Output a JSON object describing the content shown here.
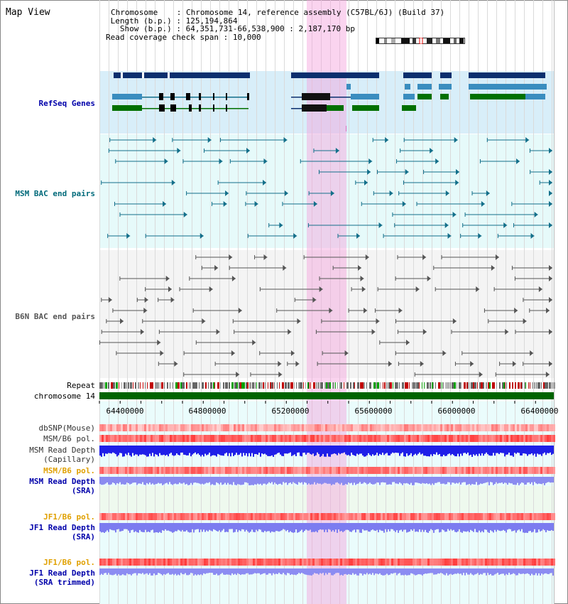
{
  "title": "Map View",
  "info": {
    "chromosome_label": "Chromosome",
    "chromosome_value": "Chromosome 14, reference assembly (C57BL/6J) (Build 37)",
    "length_label": "Length (b.p.)",
    "length_value": "125,194,864",
    "show_label": "Show (b.p.)",
    "show_value": "64,351,731-66,538,900 : 2,187,170 bp",
    "coverage_label": "Read coverage check span",
    "coverage_value": "10,000"
  },
  "tracks": {
    "refseq": "RefSeq Genes",
    "msm_bac": "MSM BAC end pairs",
    "b6n_bac": "B6N BAC end pairs",
    "repeat": "Repeat",
    "chromosome": "chromosome 14",
    "dbsnp": "dbSNP(Mouse)",
    "msm_b6_pol_1": "MSM/B6 pol.",
    "msm_read_depth_cap_1": "MSM Read Depth",
    "msm_read_depth_cap_2": "(Capillary)",
    "msm_b6_pol_2": "MSM/B6 pol.",
    "msm_read_depth_sra_1": "MSM Read Depth",
    "msm_read_depth_sra_2": "(SRA)",
    "jf1_b6_pol_1": "JF1/B6 pol.",
    "jf1_read_depth_1": "JF1 Read Depth",
    "jf1_read_depth_2": "(SRA)",
    "jf1_b6_pol_2": "JF1/B6 pol.",
    "jf1_read_depth_trim_1": "JF1 Read Depth",
    "jf1_read_depth_trim_2": "(SRA trimmed)"
  },
  "axis_ticks": [
    "64400000",
    "64800000",
    "65200000",
    "65600000",
    "66000000",
    "66400000"
  ],
  "colors": {
    "refseq_bg": "#d8eef9",
    "bac_bg": "#e4f9f9",
    "navy": "#0b2f6e",
    "steel": "#3a8dbf",
    "green": "#007000",
    "teal": "#136f8a",
    "gray": "#555555",
    "highlight": "#f4a0dc",
    "chromosome": "#006400",
    "label_blue": "#0000aa",
    "label_teal": "#006a7a",
    "label_gold": "#e0a000"
  }
}
